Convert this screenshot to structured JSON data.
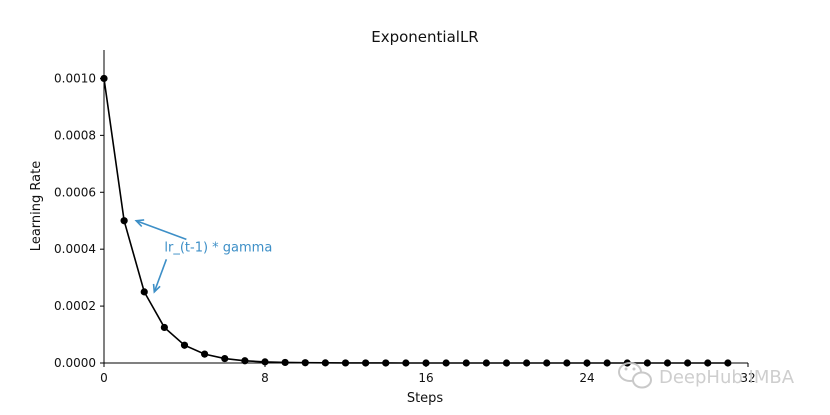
{
  "chart_data": {
    "type": "line",
    "title": "ExponentialLR",
    "xlabel": "Steps",
    "ylabel": "Learning Rate",
    "xlim": [
      0,
      32
    ],
    "ylim": [
      0,
      0.0011
    ],
    "x_ticks": [
      0,
      8,
      16,
      24,
      32
    ],
    "x_tick_labels": [
      "0",
      "8",
      "16",
      "24",
      "32"
    ],
    "y_ticks": [
      0,
      0.0002,
      0.0004,
      0.0006,
      0.0008,
      0.001
    ],
    "y_tick_labels": [
      "0.0000",
      "0.0002",
      "0.0004",
      "0.0006",
      "0.0008",
      "0.0010"
    ],
    "grid": false,
    "series": [
      {
        "color": "#000000",
        "marker": "circle",
        "x": [
          0,
          1,
          2,
          3,
          4,
          5,
          6,
          7,
          8,
          9,
          10,
          11,
          12,
          13,
          14,
          15,
          16,
          17,
          18,
          19,
          20,
          21,
          22,
          23,
          24,
          25,
          26,
          27,
          28,
          29,
          30,
          31
        ],
        "y": [
          0.001,
          0.0005,
          0.00025,
          0.000125,
          6.25e-05,
          3.125e-05,
          1.5625e-05,
          7.8125e-06,
          3.9063e-06,
          1.9531e-06,
          9.766e-07,
          4.883e-07,
          2.441e-07,
          1.221e-07,
          6.1e-08,
          3.05e-08,
          1.53e-08,
          7.6e-09,
          3.8e-09,
          1.9e-09,
          1e-09,
          5e-10,
          2e-10,
          1e-10,
          1e-10,
          0,
          0,
          0,
          0,
          0,
          0,
          0
        ]
      }
    ],
    "annotation": {
      "text": "lr_(t-1) * gamma",
      "color": "#3d8fc7",
      "arrow_targets": [
        {
          "x": 1.6,
          "y": 0.0005
        },
        {
          "x": 2.5,
          "y": 0.00025
        }
      ],
      "text_anchor": {
        "x": 3,
        "y": 0.00041
      }
    }
  },
  "watermark": {
    "text": "DeepHub IMBA",
    "icon": "wechat-icon"
  }
}
